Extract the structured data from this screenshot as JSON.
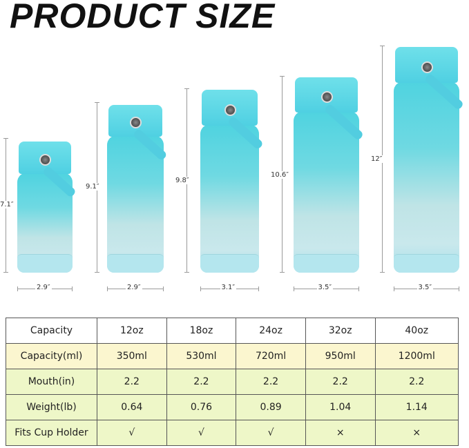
{
  "title": "PRODUCT SIZE",
  "bottles": [
    {
      "height": "7.1″",
      "width": "2.9″"
    },
    {
      "height": "9.1″",
      "width": "2.9″"
    },
    {
      "height": "9.8″",
      "width": "3.1″"
    },
    {
      "height": "10.6″",
      "width": "3.5″"
    },
    {
      "height": "12″",
      "width": "3.5″"
    }
  ],
  "colors": {
    "bottle_top": "#4fd3e0",
    "bottle_bottom": "#c9e8ec",
    "row_yellow": "#fbf6cf",
    "row_green": "#eef7c8"
  },
  "table": {
    "rows": [
      [
        "Capacity",
        "12oz",
        "18oz",
        "24oz",
        "32oz",
        "40oz"
      ],
      [
        "Capacity(ml)",
        "350ml",
        "530ml",
        "720ml",
        "950ml",
        "1200ml"
      ],
      [
        "Mouth(in)",
        "2.2",
        "2.2",
        "2.2",
        "2.2",
        "2.2"
      ],
      [
        "Weight(lb)",
        "0.64",
        "0.76",
        "0.89",
        "1.04",
        "1.14"
      ],
      [
        "Fits Cup Holder",
        "√",
        "√",
        "√",
        "×",
        "×"
      ]
    ]
  }
}
